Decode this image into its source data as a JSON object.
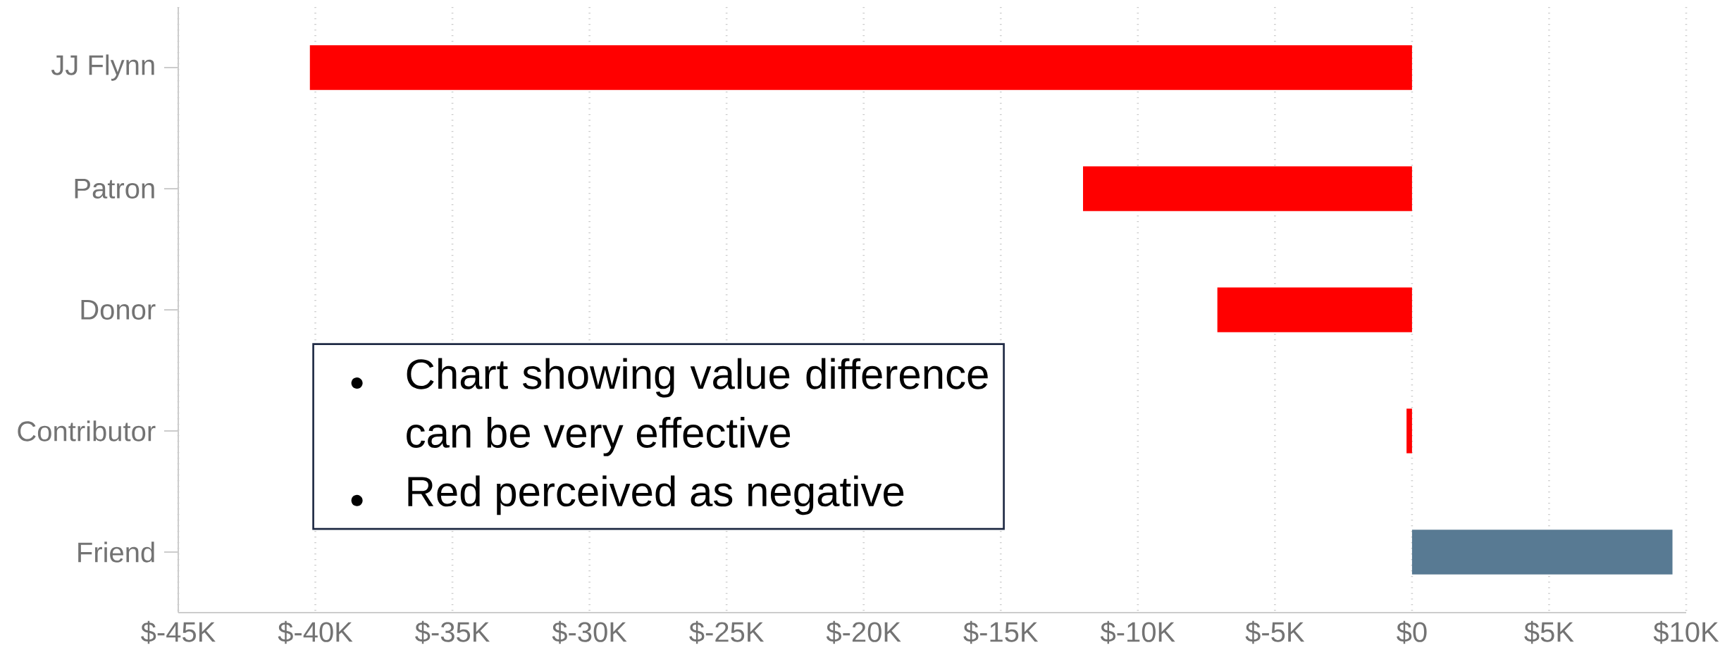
{
  "chart_data": {
    "type": "bar",
    "orientation": "horizontal",
    "categories": [
      "JJ Flynn",
      "Patron",
      "Donor",
      "Contributor",
      "Friend"
    ],
    "values": [
      -40200,
      -12000,
      -7100,
      -200,
      9500
    ],
    "colors": [
      "#ff0000",
      "#ff0000",
      "#ff0000",
      "#ff0000",
      "#587a93"
    ],
    "xlim": [
      -45000,
      10000
    ],
    "xticks": [
      {
        "value": -45000,
        "label": "$-45K"
      },
      {
        "value": -40000,
        "label": "$-40K"
      },
      {
        "value": -35000,
        "label": "$-35K"
      },
      {
        "value": -30000,
        "label": "$-30K"
      },
      {
        "value": -25000,
        "label": "$-25K"
      },
      {
        "value": -20000,
        "label": "$-20K"
      },
      {
        "value": -15000,
        "label": "$-15K"
      },
      {
        "value": -10000,
        "label": "$-10K"
      },
      {
        "value": -5000,
        "label": "$-5K"
      },
      {
        "value": 0,
        "label": "$0"
      },
      {
        "value": 5000,
        "label": "$5K"
      },
      {
        "value": 10000,
        "label": "$10K"
      }
    ],
    "grid": "x",
    "annotations": [
      "Chart showing value difference can be very effective",
      "Red perceived as negative"
    ]
  }
}
